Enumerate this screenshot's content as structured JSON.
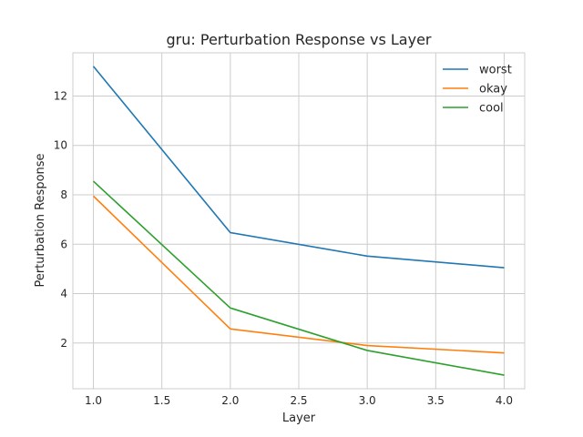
{
  "chart_data": {
    "type": "line",
    "title": "gru: Perturbation Response vs Layer",
    "xlabel": "Layer",
    "ylabel": "Perturbation Response",
    "x": [
      1.0,
      2.0,
      3.0,
      4.0
    ],
    "xlim": [
      0.85,
      4.15
    ],
    "ylim": [
      0.15,
      13.75
    ],
    "xticks": [
      1.0,
      1.5,
      2.0,
      2.5,
      3.0,
      3.5,
      4.0
    ],
    "xtick_labels": [
      "1.0",
      "1.5",
      "2.0",
      "2.5",
      "3.0",
      "3.5",
      "4.0"
    ],
    "yticks": [
      2,
      4,
      6,
      8,
      10,
      12
    ],
    "ytick_labels": [
      "2",
      "4",
      "6",
      "8",
      "10",
      "12"
    ],
    "grid": true,
    "legend_position": "top-right",
    "series": [
      {
        "name": "worst",
        "color": "#1f77b4",
        "values": [
          13.2,
          6.47,
          5.52,
          5.05
        ]
      },
      {
        "name": "okay",
        "color": "#ff7f0e",
        "values": [
          7.95,
          2.57,
          1.9,
          1.6
        ]
      },
      {
        "name": "cool",
        "color": "#2ca02c",
        "values": [
          8.55,
          3.42,
          1.7,
          0.7
        ]
      }
    ]
  }
}
